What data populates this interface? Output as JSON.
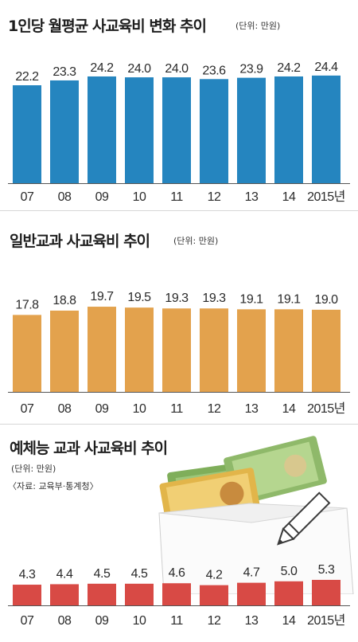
{
  "colors": {
    "bar_blue": "#2585bf",
    "bar_orange": "#e3a24d",
    "bar_red": "#d84a45",
    "baseline": "#555555"
  },
  "chart_data": [
    {
      "type": "bar",
      "title": "1인당 월평균 사교육비 변화 추이",
      "unit": "(단위: 만원)",
      "categories": [
        "07",
        "08",
        "09",
        "10",
        "11",
        "12",
        "13",
        "14",
        "2015년"
      ],
      "values": [
        22.2,
        23.3,
        24.2,
        24.0,
        24.0,
        23.6,
        23.9,
        24.2,
        24.4
      ],
      "value_labels": [
        "22.2",
        "23.3",
        "24.2",
        "24.0",
        "24.0",
        "23.6",
        "23.9",
        "24.2",
        "24.4"
      ],
      "color": "#2585bf",
      "ylim": [
        0,
        26
      ]
    },
    {
      "type": "bar",
      "title": "일반교과 사교육비 추이",
      "unit": "(단위: 만원)",
      "categories": [
        "07",
        "08",
        "09",
        "10",
        "11",
        "12",
        "13",
        "14",
        "2015년"
      ],
      "values": [
        17.8,
        18.8,
        19.7,
        19.5,
        19.3,
        19.3,
        19.1,
        19.1,
        19.0
      ],
      "value_labels": [
        "17.8",
        "18.8",
        "19.7",
        "19.5",
        "19.3",
        "19.3",
        "19.1",
        "19.1",
        "19.0"
      ],
      "color": "#e3a24d",
      "ylim": [
        0,
        21
      ]
    },
    {
      "type": "bar",
      "title": "예체능 교과 사교육비 추이",
      "unit": "(단위: 만원)",
      "source": "〈자료: 교육부·통계청〉",
      "categories": [
        "07",
        "08",
        "09",
        "10",
        "11",
        "12",
        "13",
        "14",
        "2015년"
      ],
      "values": [
        4.3,
        4.4,
        4.5,
        4.5,
        4.6,
        4.2,
        4.7,
        5.0,
        5.3
      ],
      "value_labels": [
        "4.3",
        "4.4",
        "4.5",
        "4.5",
        "4.6",
        "4.2",
        "4.7",
        "5.0",
        "5.3"
      ],
      "color": "#d84a45",
      "ylim": [
        0,
        5.3
      ]
    }
  ]
}
